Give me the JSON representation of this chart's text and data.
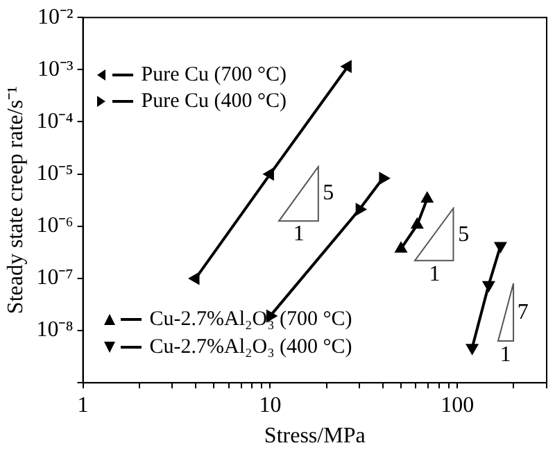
{
  "chart_data": {
    "type": "line",
    "xlabel": "Stress/MPa",
    "ylabel": "Steady state creep rate/s⁻¹",
    "log": "xy",
    "grid": false,
    "legend": "left",
    "marker": "triangle",
    "line_style": "solid",
    "xlim": [
      1,
      300
    ],
    "xticks": [
      1,
      10,
      100,
      {
        "value": 2,
        "label": null
      },
      {
        "value": 3,
        "label": null
      },
      {
        "value": 4,
        "label": null
      },
      {
        "value": 5,
        "label": null
      },
      {
        "value": 6,
        "label": null
      },
      {
        "value": 7,
        "label": null
      },
      {
        "value": 8,
        "label": null
      },
      {
        "value": 9,
        "label": null
      },
      {
        "value": 20,
        "label": null
      },
      {
        "value": 30,
        "label": null
      },
      {
        "value": 40,
        "label": null
      },
      {
        "value": 50,
        "label": null
      },
      {
        "value": 60,
        "label": null
      },
      {
        "value": 70,
        "label": null
      },
      {
        "value": 80,
        "label": null
      },
      {
        "value": 90,
        "label": null
      },
      {
        "value": 200,
        "label": null
      },
      {
        "value": 300,
        "label": null
      }
    ],
    "ylim": [
      1e-09,
      0.01
    ],
    "yticks": [
      {
        "value": 0.01,
        "label": "10⁻²"
      },
      {
        "value": 0.001,
        "label": "10⁻³"
      },
      {
        "value": 0.0001,
        "label": "10⁻⁴"
      },
      {
        "value": 1e-05,
        "label": "10⁻⁵"
      },
      {
        "value": 1e-06,
        "label": "10⁻⁶"
      },
      {
        "value": 1e-07,
        "label": "10⁻⁷"
      },
      {
        "value": 1e-08,
        "label": "10⁻⁸"
      },
      {
        "value": 1e-09,
        "label": null
      }
    ],
    "series": [
      {
        "name": "Pure Cu (700 °C)",
        "color": "#000000",
        "x": [
          4,
          10,
          26
        ],
        "values": [
          1e-07,
          1e-05,
          0.00115
        ]
      },
      {
        "name": "Pure Cu (400 °C)",
        "color": "#000000",
        "x": [
          10,
          30,
          40
        ],
        "values": [
          1.9e-08,
          2.1e-06,
          8.3e-06
        ]
      },
      {
        "name": "Cu-2.7%Al₂O₃ (700 °C)",
        "color": "#000000",
        "x": [
          50,
          61,
          69
        ],
        "values": [
          3.7e-07,
          1.06e-06,
          3.35e-06
        ]
      },
      {
        "name": "Cu-2.7%Al₂O₃ (400 °C)",
        "color": "#000000",
        "x": [
          120,
          147,
          170
        ],
        "values": [
          4.7e-09,
          7.5e-08,
          4.2e-07
        ]
      }
    ],
    "annotations": [
      "5",
      "1",
      "5",
      "1",
      "7",
      "1"
    ]
  }
}
